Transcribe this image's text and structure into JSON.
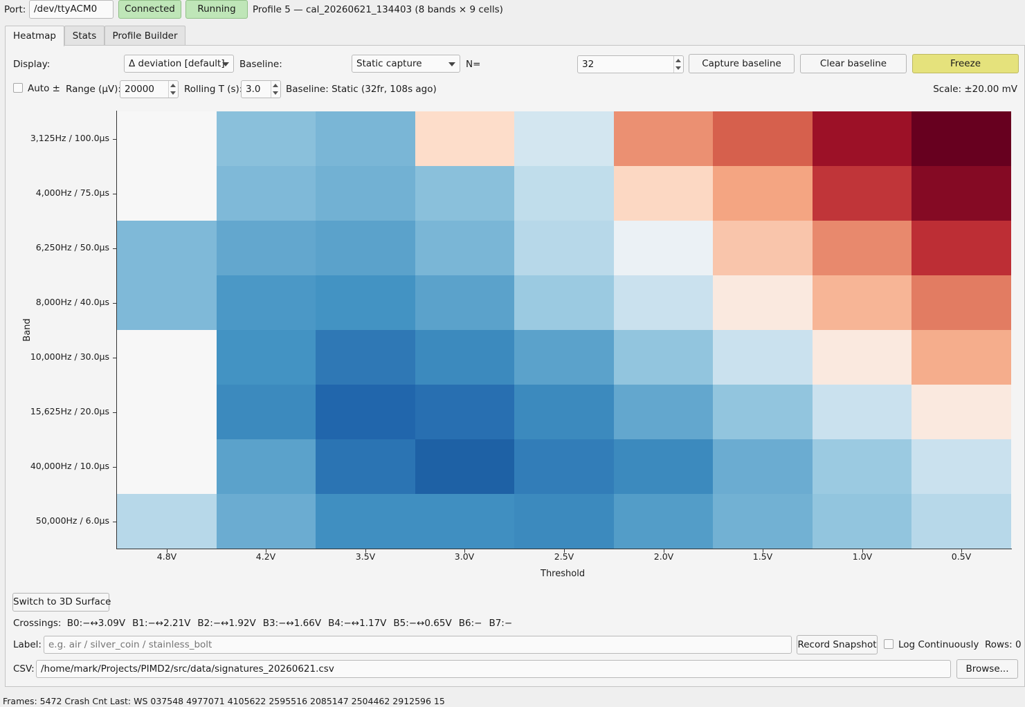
{
  "connection": {
    "port_label": "Port:",
    "port_value": "/dev/ttyACM0",
    "connected_label": "Connected",
    "running_label": "Running",
    "profile_text": "Profile 5 — cal_20260621_134403 (8 bands × 9 cells)"
  },
  "tabs": [
    {
      "label": "Heatmap",
      "active": true
    },
    {
      "label": "Stats",
      "active": false
    },
    {
      "label": "Profile Builder",
      "active": false
    }
  ],
  "controls": {
    "display_label": "Display:",
    "display_value": "Δ deviation [default]",
    "baseline_label": "Baseline:",
    "baseline_value": "Static capture",
    "n_label": "N=",
    "n_value": "32",
    "capture_baseline": "Capture baseline",
    "clear_baseline": "Clear baseline",
    "freeze": "Freeze",
    "auto_label": "Auto ±",
    "range_label": "Range (μV):",
    "range_value": "20000",
    "rolling_label": "Rolling T (s):",
    "rolling_value": "3.0",
    "baseline_status": "Baseline: Static (32fr, 108s ago)",
    "scale_text": "Scale: ±20.00 mV"
  },
  "chart_data": {
    "type": "heatmap",
    "xlabel": "Threshold",
    "ylabel": "Band",
    "x_categories": [
      "4.8V",
      "4.2V",
      "3.5V",
      "3.0V",
      "2.5V",
      "2.0V",
      "1.5V",
      "1.0V",
      "0.5V"
    ],
    "y_categories": [
      "3,125Hz / 100.0μs",
      "4,000Hz / 75.0μs",
      "6,250Hz / 50.0μs",
      "8,000Hz / 40.0μs",
      "10,000Hz / 30.0μs",
      "15,625Hz / 20.0μs",
      "40,000Hz / 10.0μs",
      "50,000Hz / 6.0μs"
    ],
    "value_range": [
      -20,
      20
    ],
    "unit": "mV",
    "colormap": "RdBu_r",
    "values": [
      [
        0.0,
        -5.5,
        -6.5,
        1.5,
        -1.5,
        6.5,
        10.0,
        16.5,
        20.0
      ],
      [
        0.0,
        -6.2,
        -7.0,
        -5.5,
        -2.5,
        1.8,
        5.0,
        13.0,
        18.0
      ],
      [
        -6.2,
        -8.0,
        -8.5,
        -6.5,
        -3.0,
        -0.5,
        3.0,
        7.0,
        13.5
      ],
      [
        -6.2,
        -9.5,
        -10.0,
        -8.5,
        -4.5,
        -2.0,
        0.8,
        4.0,
        8.0
      ],
      [
        0.0,
        -10.0,
        -13.0,
        -11.0,
        -8.5,
        -5.0,
        -2.0,
        0.8,
        4.5
      ],
      [
        0.0,
        -11.0,
        -15.0,
        -14.0,
        -11.0,
        -8.0,
        -5.0,
        -2.0,
        0.8
      ],
      [
        0.0,
        -8.5,
        -13.5,
        -15.5,
        -12.5,
        -11.0,
        -7.5,
        -4.5,
        -2.0
      ],
      [
        -3.0,
        -7.5,
        -10.5,
        -10.5,
        -11.0,
        -9.0,
        -7.0,
        -5.0,
        -3.0
      ]
    ]
  },
  "bottom": {
    "switch_3d": "Switch to 3D Surface",
    "crossings_label": "Crossings:",
    "crossings": [
      "B0:−↔3.09V",
      "B1:−↔2.21V",
      "B2:−↔1.92V",
      "B3:−↔1.66V",
      "B4:−↔1.17V",
      "B5:−↔0.65V",
      "B6:−",
      "B7:−"
    ],
    "label_label": "Label:",
    "label_placeholder": "e.g. air / silver_coin / stainless_bolt",
    "record_snapshot": "Record Snapshot",
    "log_continuously": "Log Continuously",
    "rows_text": "Rows: 0",
    "csv_label": "CSV:",
    "csv_path": "/home/mark/Projects/PIMD2/src/data/signatures_20260621.csv",
    "browse": "Browse..."
  },
  "statusbar": {
    "text": "Frames: 5472   Crash Cnt   Last: WS 037548 4977071 4105622 2595516 2085147 2504462 2912596 15"
  }
}
